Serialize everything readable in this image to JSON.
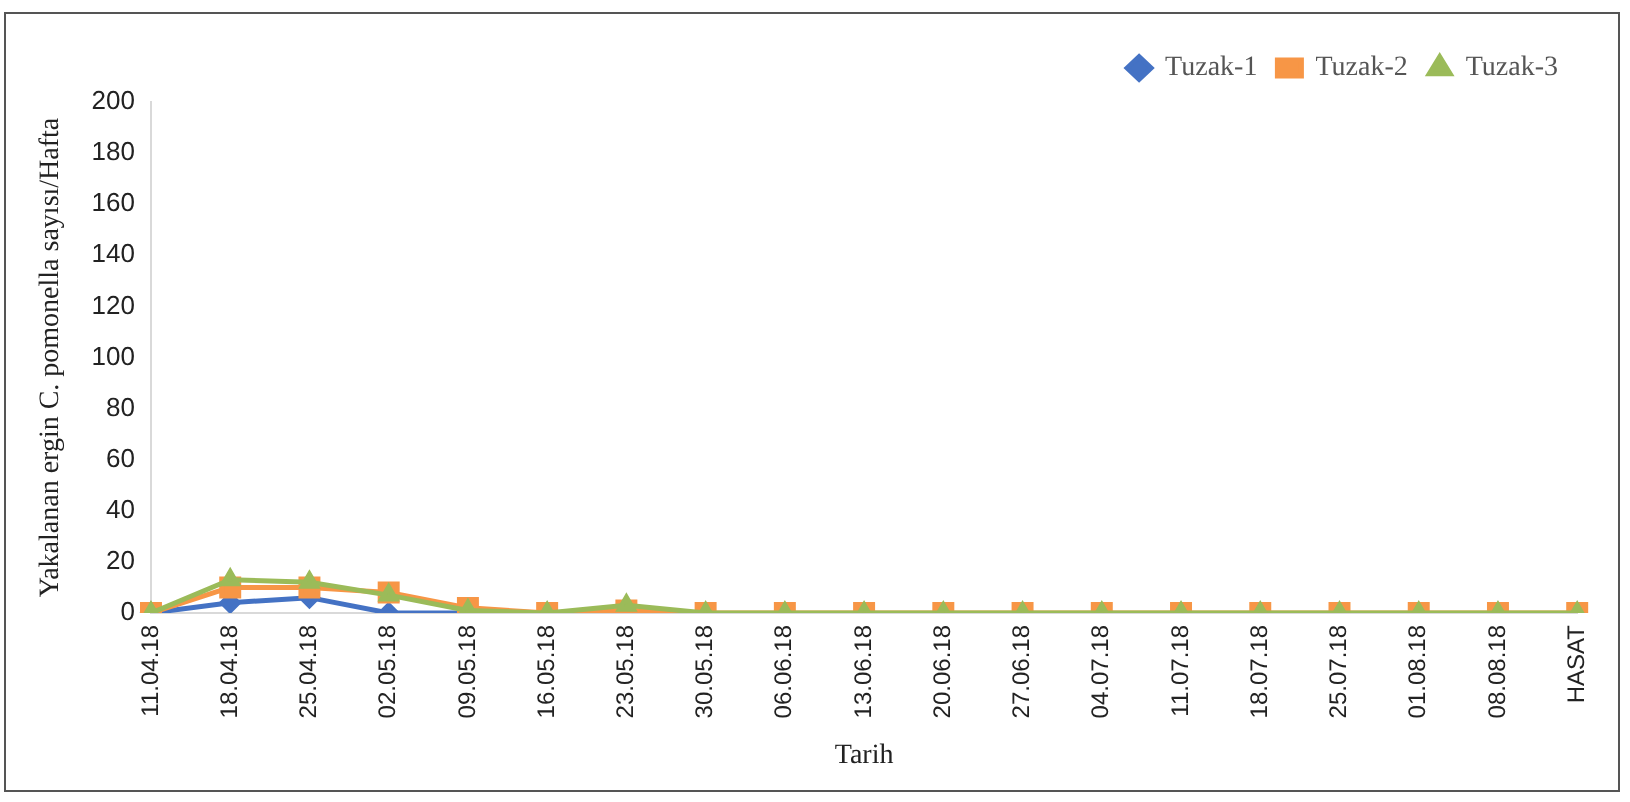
{
  "chart_data": {
    "type": "line",
    "xlabel": "Tarih",
    "ylabel": "Yakalanan ergin C. pomonella sayısı/Hafta",
    "categories": [
      "11.04.18",
      "18.04.18",
      "25.04.18",
      "02.05.18",
      "09.05.18",
      "16.05.18",
      "23.05.18",
      "30.05.18",
      "06.06.18",
      "13.06.18",
      "20.06.18",
      "27.06.18",
      "04.07.18",
      "11.07.18",
      "18.07.18",
      "25.07.18",
      "01.08.18",
      "08.08.18",
      "HASAT"
    ],
    "series": [
      {
        "name": "Tuzak-1",
        "color": "#4472c4",
        "marker": "diamond",
        "values": [
          0,
          4,
          6,
          0,
          0,
          null,
          null,
          null,
          null,
          null,
          null,
          null,
          null,
          null,
          null,
          null,
          null,
          null,
          null
        ]
      },
      {
        "name": "Tuzak-2",
        "color": "#f79646",
        "marker": "square",
        "values": [
          0,
          10,
          10,
          8,
          2,
          0,
          1,
          0,
          0,
          0,
          0,
          0,
          0,
          0,
          0,
          0,
          0,
          0,
          0
        ]
      },
      {
        "name": "Tuzak-3",
        "color": "#9bbb59",
        "marker": "triangle",
        "values": [
          0,
          13,
          12,
          7,
          1,
          0,
          3,
          0,
          0,
          0,
          0,
          0,
          0,
          0,
          0,
          0,
          0,
          0,
          0
        ]
      }
    ],
    "ylim": [
      0,
      200
    ],
    "yticks": [
      0,
      20,
      40,
      60,
      80,
      100,
      120,
      140,
      160,
      180,
      200
    ],
    "grid": false,
    "legend": "top right"
  }
}
